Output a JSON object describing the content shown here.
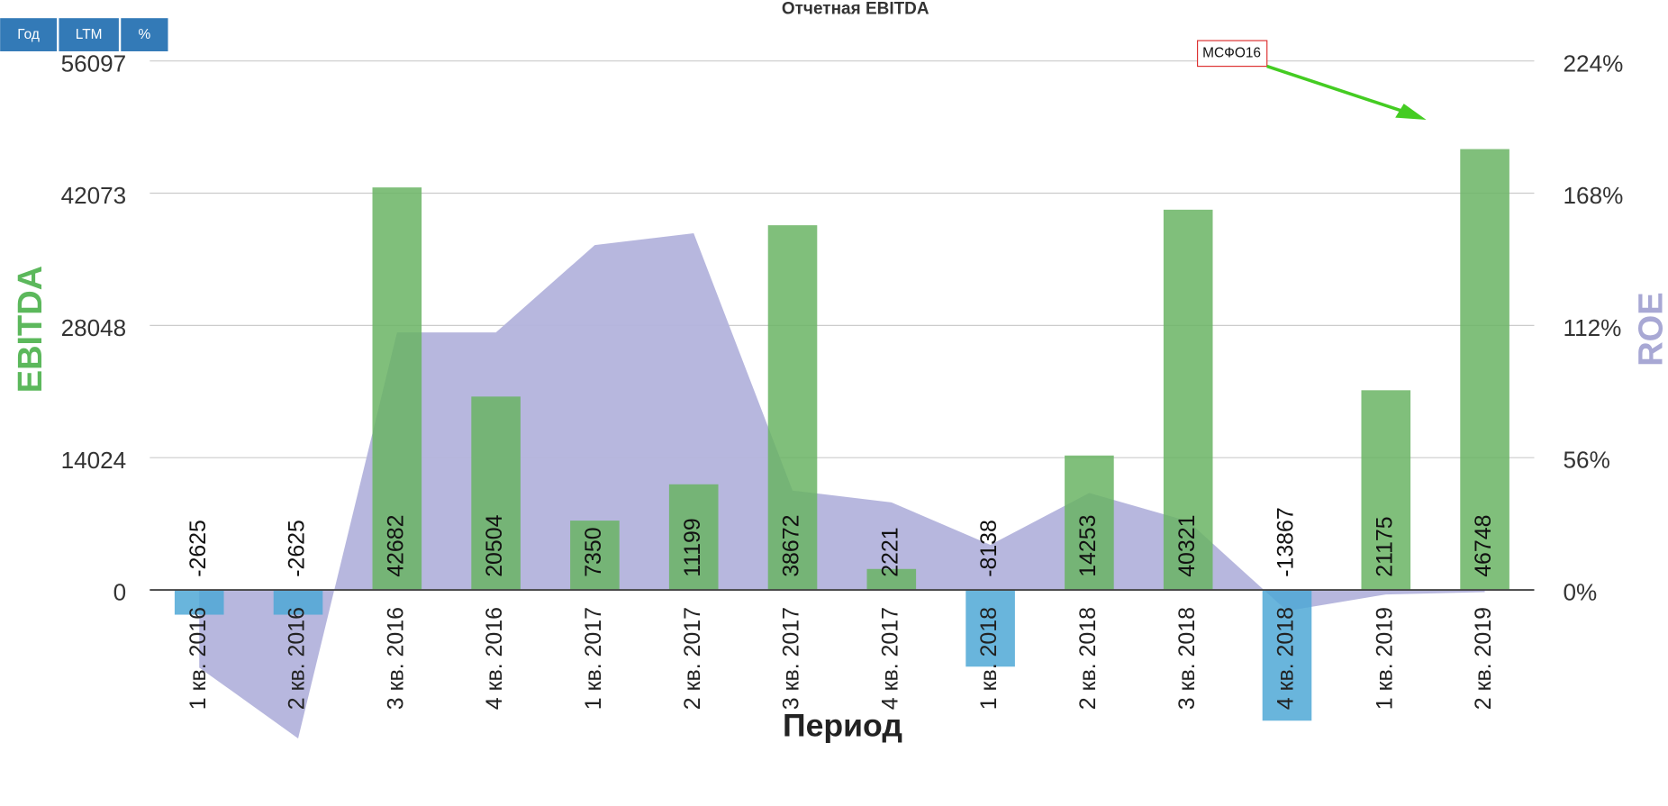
{
  "buttons": [
    "Год",
    "LTM",
    "%"
  ],
  "chart_data": {
    "type": "bar",
    "title": "Отчетная EBITDA",
    "x_label": "Период",
    "y_label": "EBITDA",
    "y2_label": "ROE",
    "categories": [
      "1 кв. 2016",
      "2 кв. 2016",
      "3 кв. 2016",
      "4 кв. 2016",
      "1 кв. 2017",
      "2 кв. 2017",
      "3 кв. 2017",
      "4 кв. 2017",
      "1 кв. 2018",
      "2 кв. 2018",
      "3 кв. 2018",
      "4 кв. 2018",
      "1 кв. 2019",
      "2 кв. 2019"
    ],
    "series": [
      {
        "type": "bar",
        "color": "#6ab464",
        "negative_color": "#4fa8d6",
        "values": [
          -2625,
          -2625,
          42682,
          20504,
          7350,
          11199,
          38672,
          2221,
          -8138,
          14253,
          40321,
          -13867,
          21175,
          46748
        ]
      },
      {
        "type": "area",
        "axis": "y2",
        "color": "#b3b3dc",
        "values": [
          -33,
          -63,
          109,
          109,
          146,
          151,
          42,
          37,
          19,
          41,
          29,
          -9,
          -2,
          -1
        ]
      }
    ],
    "ylim": [
      -16000,
      56097
    ],
    "yticks": [
      0,
      14024,
      28048,
      42073,
      56097
    ],
    "y2lim": [
      -64,
      224
    ],
    "y2ticks": [
      {
        "value": 0,
        "label": "0%"
      },
      {
        "value": 56,
        "label": "56%"
      },
      {
        "value": 112,
        "label": "112%"
      },
      {
        "value": 168,
        "label": "168%"
      },
      {
        "value": 224,
        "label": "224%"
      }
    ],
    "grid": true,
    "annotation": {
      "text": "МСФО16",
      "color": "#44cc22"
    }
  }
}
